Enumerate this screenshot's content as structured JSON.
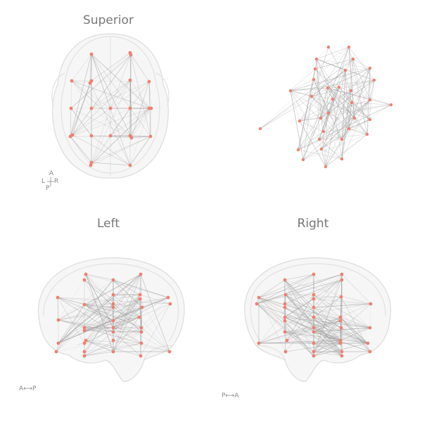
{
  "panels": {
    "superior": {
      "title": "Superior"
    },
    "left": {
      "title": "Left"
    },
    "right": {
      "title": "Right"
    },
    "iso": {
      "title": ""
    }
  },
  "orientation": {
    "superior": {
      "a": "A",
      "l": "L",
      "r": "R",
      "p": "P"
    },
    "left": {
      "label": "A⟷P"
    },
    "right": {
      "label": "P⟷A"
    }
  },
  "colors": {
    "node": "#f08070",
    "edge": "#9a9a9a",
    "brain": "#d8d8d8"
  }
}
